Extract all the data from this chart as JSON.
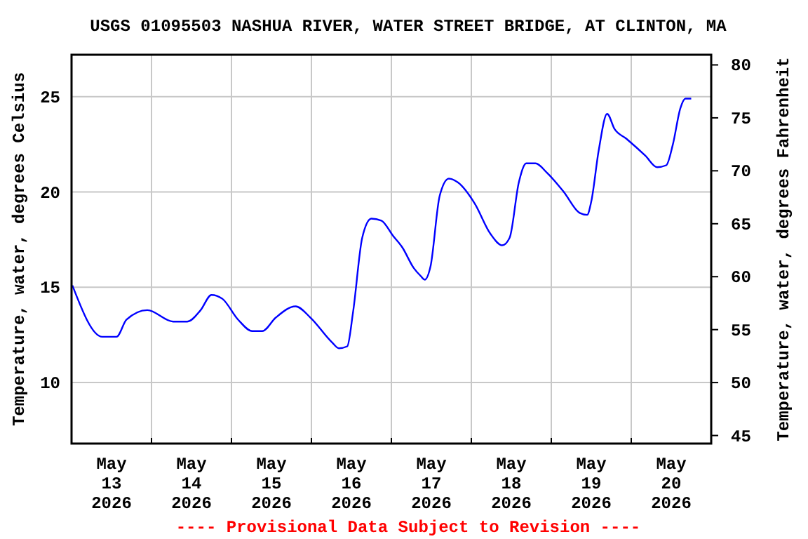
{
  "chart_data": {
    "type": "line",
    "title": "USGS 01095503 NASHUA RIVER, WATER STREET BRIDGE, AT CLINTON, MA",
    "ylabel": "Temperature, water, degrees Celsius",
    "y2label": "Temperature, water, degrees Fahrenheit",
    "annotations": [
      "---- Provisional Data Subject to Revision ----"
    ],
    "xlim": [
      "2026-05-13T00:00",
      "2026-05-21T00:00"
    ],
    "xticks": [
      {
        "value": "2026-05-13T12:00",
        "label": "May\n13\n2026"
      },
      {
        "value": "2026-05-14T00:00",
        "label": null
      },
      {
        "value": "2026-05-14T12:00",
        "label": "May\n14\n2026"
      },
      {
        "value": "2026-05-15T00:00",
        "label": null
      },
      {
        "value": "2026-05-15T12:00",
        "label": "May\n15\n2026"
      },
      {
        "value": "2026-05-16T00:00",
        "label": null
      },
      {
        "value": "2026-05-16T12:00",
        "label": "May\n16\n2026"
      },
      {
        "value": "2026-05-17T00:00",
        "label": null
      },
      {
        "value": "2026-05-17T12:00",
        "label": "May\n17\n2026"
      },
      {
        "value": "2026-05-18T00:00",
        "label": null
      },
      {
        "value": "2026-05-18T12:00",
        "label": "May\n18\n2026"
      },
      {
        "value": "2026-05-19T00:00",
        "label": null
      },
      {
        "value": "2026-05-19T12:00",
        "label": "May\n19\n2026"
      },
      {
        "value": "2026-05-20T00:00",
        "label": null
      },
      {
        "value": "2026-05-20T12:00",
        "label": "May\n20\n2026"
      }
    ],
    "ylim": [
      6.8,
      27.2
    ],
    "yticks": [
      10,
      15,
      20,
      25
    ],
    "y2lim": [
      44.24,
      80.96
    ],
    "y2ticks": [
      45,
      50,
      55,
      60,
      65,
      70,
      75,
      80
    ],
    "grid": true,
    "marker": "none",
    "line_style": "solid",
    "series": [
      {
        "color": "#0000ff",
        "x": [
          "2026-05-13T00:15",
          "2026-05-13T09:15",
          "2026-05-13T13:30",
          "2026-05-13T16:30",
          "2026-05-13T22:45",
          "2026-05-14T06:30",
          "2026-05-14T10:45",
          "2026-05-14T14:45",
          "2026-05-14T18:00",
          "2026-05-14T21:15",
          "2026-05-15T02:00",
          "2026-05-15T06:15",
          "2026-05-15T09:15",
          "2026-05-15T13:15",
          "2026-05-15T19:15",
          "2026-05-15T23:45",
          "2026-05-16T06:15",
          "2026-05-16T08:15",
          "2026-05-16T10:45",
          "2026-05-16T12:30",
          "2026-05-16T15:15",
          "2026-05-16T18:00",
          "2026-05-16T21:00",
          "2026-05-17T00:30",
          "2026-05-17T03:15",
          "2026-05-17T06:45",
          "2026-05-17T08:45",
          "2026-05-17T10:00",
          "2026-05-17T11:45",
          "2026-05-17T14:30",
          "2026-05-17T17:15",
          "2026-05-17T20:00",
          "2026-05-18T01:00",
          "2026-05-18T05:45",
          "2026-05-18T09:15",
          "2026-05-18T11:30",
          "2026-05-18T14:15",
          "2026-05-18T16:30",
          "2026-05-18T19:15",
          "2026-05-18T22:45",
          "2026-05-19T03:45",
          "2026-05-19T08:30",
          "2026-05-19T10:45",
          "2026-05-19T12:00",
          "2026-05-19T14:15",
          "2026-05-19T16:45",
          "2026-05-19T19:00",
          "2026-05-19T22:30",
          "2026-05-20T04:15",
          "2026-05-20T07:45",
          "2026-05-20T10:30",
          "2026-05-20T12:30",
          "2026-05-20T14:45",
          "2026-05-20T16:15",
          "2026-05-20T18:00"
        ],
        "values": [
          15.1,
          12.4,
          12.4,
          13.3,
          13.8,
          13.2,
          13.2,
          13.8,
          14.6,
          14.4,
          13.3,
          12.7,
          12.7,
          13.4,
          14.0,
          13.4,
          12.1,
          11.8,
          11.9,
          13.7,
          17.6,
          18.6,
          18.5,
          17.7,
          17.1,
          16.0,
          15.6,
          15.4,
          16.1,
          19.8,
          20.7,
          20.5,
          19.4,
          17.8,
          17.2,
          17.6,
          20.5,
          21.5,
          21.5,
          21.0,
          20.0,
          18.9,
          18.8,
          19.5,
          22.2,
          24.1,
          23.3,
          22.8,
          21.9,
          21.3,
          21.4,
          22.5,
          24.4,
          24.9,
          24.9
        ]
      }
    ]
  }
}
